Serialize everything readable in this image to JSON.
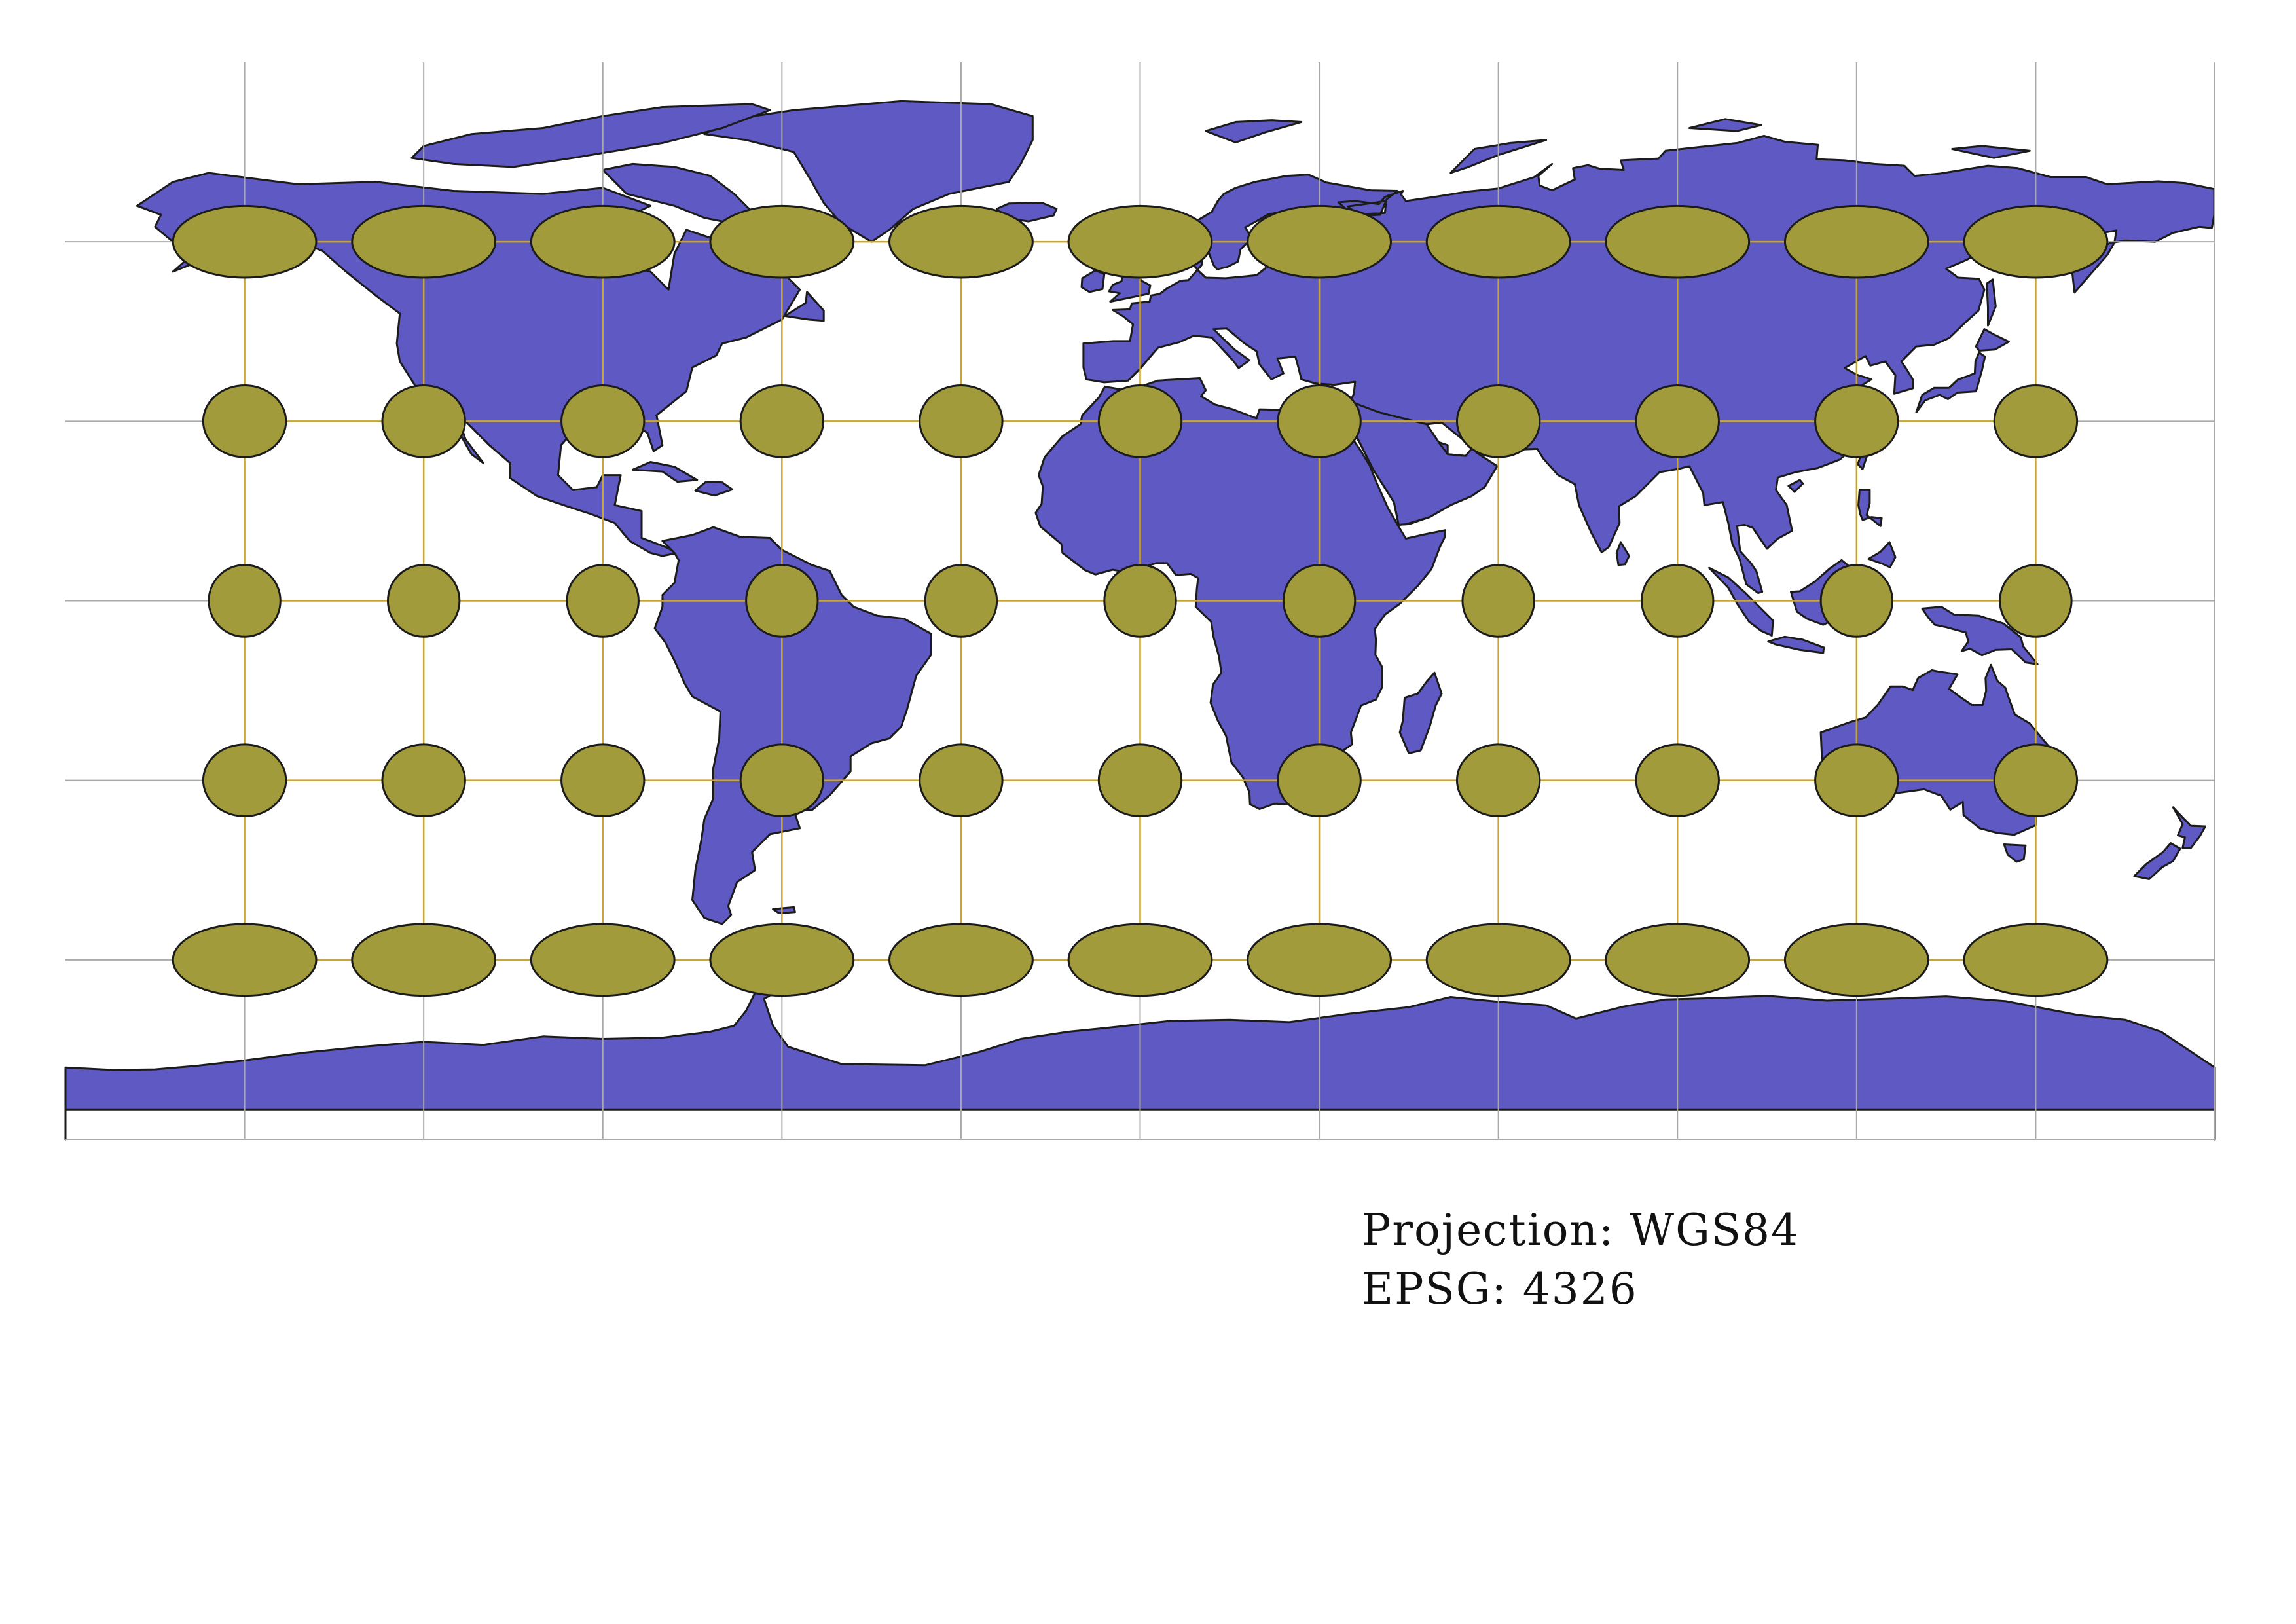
{
  "map": {
    "projection_label": "Projection: WGS84",
    "epsg_label": "EPSG: 4326",
    "land_color": "#5f59c4",
    "outline_color": "#1b1b1b",
    "ellipse_color": "#a19b3b",
    "graticule_color": "#a9a9a9",
    "ellipse_grid_color": "#c8a534",
    "lon_extent": [
      -180,
      180
    ],
    "lat_extent": [
      -90,
      90
    ],
    "graticule": {
      "meridians": [
        -150,
        -120,
        -90,
        -60,
        -30,
        0,
        30,
        60,
        90,
        120,
        150,
        180
      ],
      "parallels": [
        -60,
        -30,
        0,
        30,
        60
      ]
    },
    "tissot": {
      "longitudes": [
        -150,
        -120,
        -90,
        -60,
        -30,
        0,
        30,
        60,
        90,
        120,
        150
      ],
      "latitudes": [
        60,
        30,
        0,
        -30,
        -60
      ],
      "radius_deg": 6
    }
  }
}
